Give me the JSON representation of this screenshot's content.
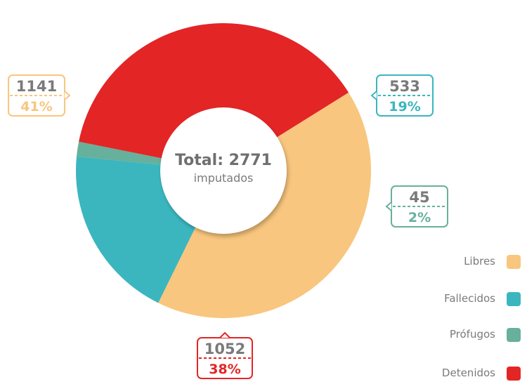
{
  "chart_data": {
    "type": "pie",
    "categories": [
      "Libres",
      "Fallecidos",
      "Prófugos",
      "Detenidos"
    ],
    "values": [
      1141,
      533,
      45,
      1052
    ],
    "percent_labels": [
      "41%",
      "19%",
      "2%",
      "38%"
    ],
    "colors": [
      "#f8c67e",
      "#3bb6bf",
      "#67b09c",
      "#e32526"
    ],
    "center_total": "Total: 2771",
    "center_sub": "imputados",
    "legend": [
      "Libres",
      "Fallecidos",
      "Prófugos",
      "Detenidos"
    ],
    "legend_position": "bottom-right"
  }
}
